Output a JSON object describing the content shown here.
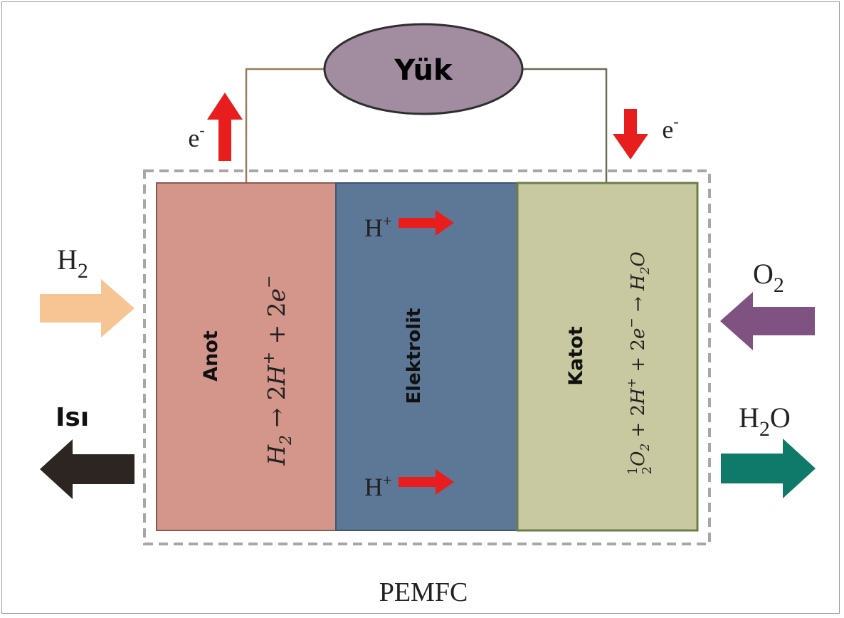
{
  "load": {
    "label": "Yük"
  },
  "electron_left": {
    "base": "e",
    "sup": "-"
  },
  "electron_right": {
    "base": "e",
    "sup": "-"
  },
  "anode": {
    "label": "Anot",
    "reaction": {
      "a": "H",
      "a_sub": "2",
      "arrow": " → 2",
      "b": "H",
      "b_sup": "+",
      "plus": " + 2",
      "c": "e",
      "c_sup": "−"
    }
  },
  "electrolyte": {
    "label": "Elektrolit",
    "proton_top": {
      "base": "H",
      "sup": "+"
    },
    "proton_bottom": {
      "base": "H",
      "sup": "+"
    }
  },
  "cathode": {
    "label": "Katot",
    "reaction": {
      "frac_num": "1",
      "frac_den": "2",
      "a": "O",
      "a_sub": "2",
      "p1": " + 2",
      "b": "H",
      "b_sup": "+",
      "p2": " + 2",
      "c": "e",
      "c_sup": "−",
      "arrow": " → ",
      "d": "H",
      "d_sub": "2",
      "e": "O"
    }
  },
  "inputs": {
    "h2": {
      "base": "H",
      "sub": "2"
    },
    "o2": {
      "base": "O",
      "sub": "2"
    }
  },
  "outputs": {
    "heat": "Isı",
    "water": {
      "a": "H",
      "sub": "2",
      "b": "O"
    }
  },
  "caption": "PEMFC",
  "colors": {
    "anode": "#d4968a",
    "electrolyte": "#5d7797",
    "cathode": "#c8c9a0",
    "load": "#a18ca0",
    "red_arrow": "#e81e1e",
    "h2_arrow": "#f7c594",
    "o2_arrow": "#7f5282",
    "heat_arrow": "#2c2522",
    "water_arrow": "#0f7a6a"
  }
}
